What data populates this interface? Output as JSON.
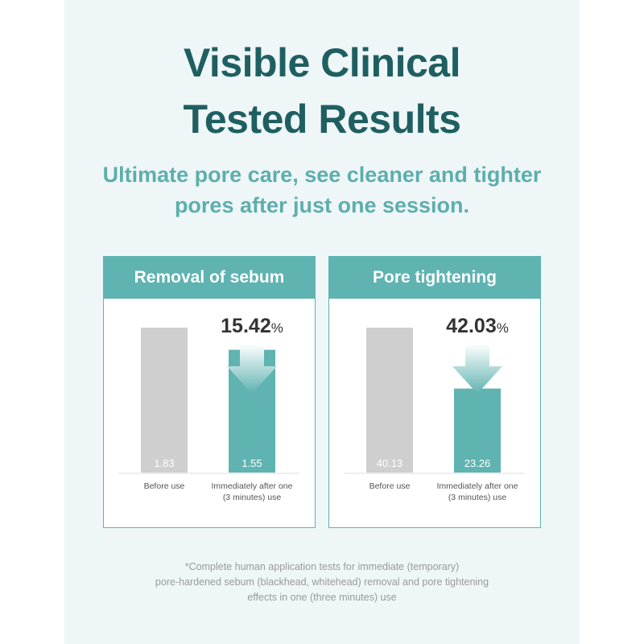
{
  "title": {
    "line1": "Visible Clinical",
    "line2": "Tested Results"
  },
  "subtitle": {
    "line1": "Ultimate pore care, see cleaner and tighter",
    "line2": "pores after just one session."
  },
  "colors": {
    "accent": "#5fb3b1",
    "before_bar": "#cfcfcf",
    "title": "#1f5f61",
    "subtitle": "#5eaeac"
  },
  "chart_data": [
    {
      "type": "bar",
      "title": "Removal of sebum",
      "categories": [
        "Before use",
        "Immediately after one (3 minutes) use"
      ],
      "values": [
        1.83,
        1.55
      ],
      "value_labels": [
        "1.83",
        "1.55"
      ],
      "change_label": "15.42",
      "change_unit": "%",
      "arrow": "down-arrow-icon"
    },
    {
      "type": "bar",
      "title": "Pore tightening",
      "categories": [
        "Before use",
        "Immediately after one (3 minutes) use"
      ],
      "values": [
        40.13,
        23.26
      ],
      "value_labels": [
        "40.13",
        "23.26"
      ],
      "change_label": "42.03",
      "change_unit": "%",
      "arrow": "down-arrow-icon"
    }
  ],
  "footnote": {
    "line1": "*Complete human application tests for immediate (temporary)",
    "line2": "pore-hardened sebum (blackhead, whitehead) removal and pore tightening",
    "line3": "effects in one (three minutes) use"
  }
}
